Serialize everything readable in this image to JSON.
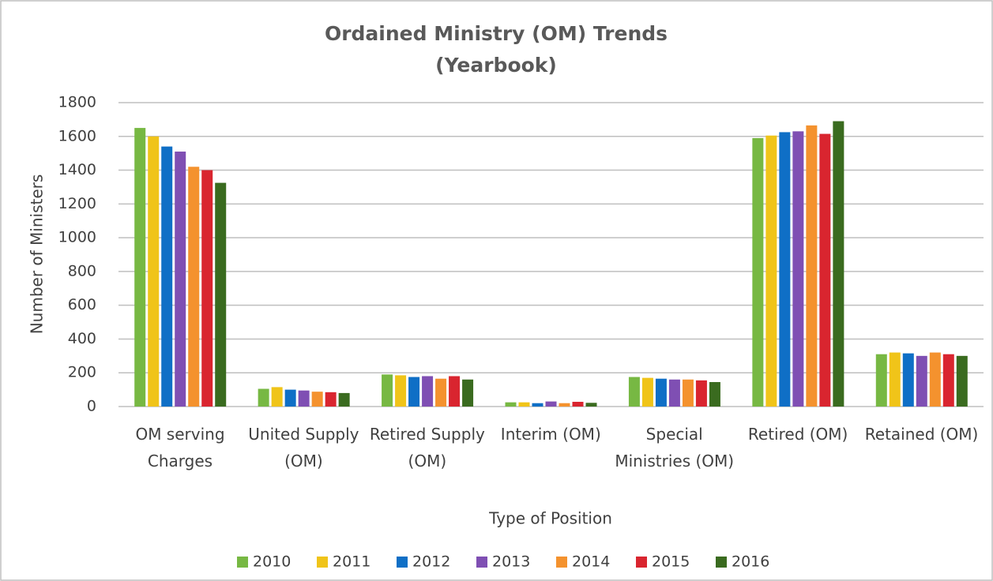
{
  "chart_data": {
    "type": "bar",
    "title": "Ordained Ministry (OM) Trends",
    "subtitle": "(Yearbook)",
    "x_label": "Type of Position",
    "y_label": "Number of Ministers",
    "categories": [
      "OM serving Charges",
      "United Supply (OM)",
      "Retired Supply (OM)",
      "Interim (OM)",
      "Special Ministries (OM)",
      "Retired (OM)",
      "Retained (OM)"
    ],
    "series": [
      {
        "name": "2010",
        "color": "#77b843",
        "values": [
          1650,
          105,
          190,
          25,
          175,
          1590,
          310
        ]
      },
      {
        "name": "2011",
        "color": "#f0c419",
        "values": [
          1600,
          115,
          185,
          25,
          170,
          1605,
          320
        ]
      },
      {
        "name": "2012",
        "color": "#0f6fc6",
        "values": [
          1540,
          100,
          175,
          20,
          165,
          1625,
          315
        ]
      },
      {
        "name": "2013",
        "color": "#7f4fb3",
        "values": [
          1510,
          95,
          180,
          30,
          160,
          1630,
          300
        ]
      },
      {
        "name": "2014",
        "color": "#f4922e",
        "values": [
          1420,
          88,
          165,
          20,
          160,
          1665,
          320
        ]
      },
      {
        "name": "2015",
        "color": "#d9252f",
        "values": [
          1400,
          85,
          180,
          28,
          155,
          1615,
          310
        ]
      },
      {
        "name": "2016",
        "color": "#3a6b1f",
        "values": [
          1325,
          80,
          160,
          22,
          145,
          1690,
          300
        ]
      }
    ],
    "ylim": [
      0,
      1800
    ],
    "yticks": [
      0,
      200,
      400,
      600,
      800,
      1000,
      1200,
      1400,
      1600,
      1800
    ],
    "grid": true,
    "legend": "bottom"
  }
}
